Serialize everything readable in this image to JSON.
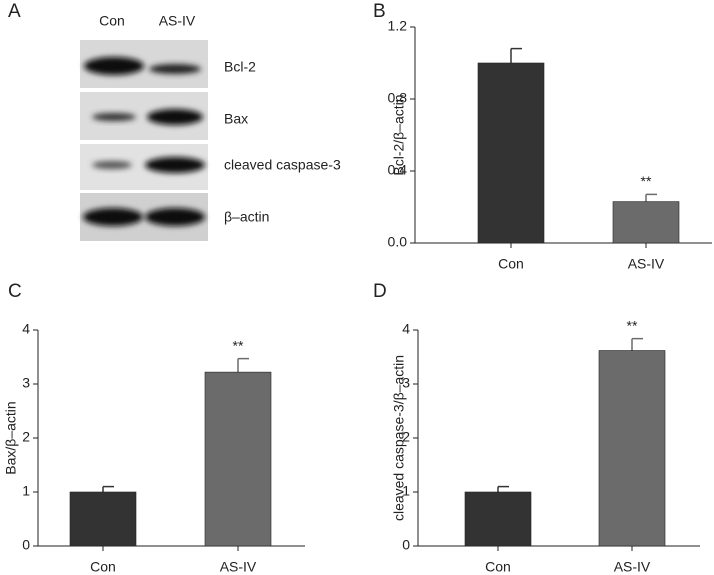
{
  "blot": {
    "panel": "A",
    "lanes": [
      "Con",
      "AS-IV"
    ],
    "bands": [
      "Bcl-2",
      "Bax",
      "cleaved caspase-3",
      "β–actin"
    ]
  },
  "chart_data": [
    {
      "type": "bar",
      "panel": "B",
      "ylabel": "Bcl-2/β–actin",
      "categories": [
        "Con",
        "AS-IV"
      ],
      "values": [
        1.0,
        0.23
      ],
      "errors": [
        0.08,
        0.04
      ],
      "annotations": [
        null,
        "**"
      ],
      "colors": [
        "#333333",
        "#6b6b6b"
      ],
      "ylim": [
        0,
        1.2
      ],
      "yticks": [
        {
          "value": 0,
          "label": "0.0"
        },
        0.4,
        0.8,
        1.2
      ]
    },
    {
      "type": "bar",
      "panel": "C",
      "ylabel": "Bax/β–actin",
      "categories": [
        "Con",
        "AS-IV"
      ],
      "values": [
        1.0,
        3.22
      ],
      "errors": [
        0.1,
        0.25
      ],
      "annotations": [
        null,
        "**"
      ],
      "colors": [
        "#333333",
        "#6b6b6b"
      ],
      "ylim": [
        0,
        4
      ],
      "yticks": [
        0,
        1,
        2,
        3,
        4
      ]
    },
    {
      "type": "bar",
      "panel": "D",
      "ylabel": "cleaved caspase-3/β–actin",
      "categories": [
        "Con",
        "AS-IV"
      ],
      "values": [
        1.0,
        3.62
      ],
      "errors": [
        0.1,
        0.22
      ],
      "annotations": [
        null,
        "**"
      ],
      "colors": [
        "#333333",
        "#6b6b6b"
      ],
      "ylim": [
        0,
        4
      ],
      "yticks": [
        0,
        1,
        2,
        3,
        4
      ]
    }
  ]
}
